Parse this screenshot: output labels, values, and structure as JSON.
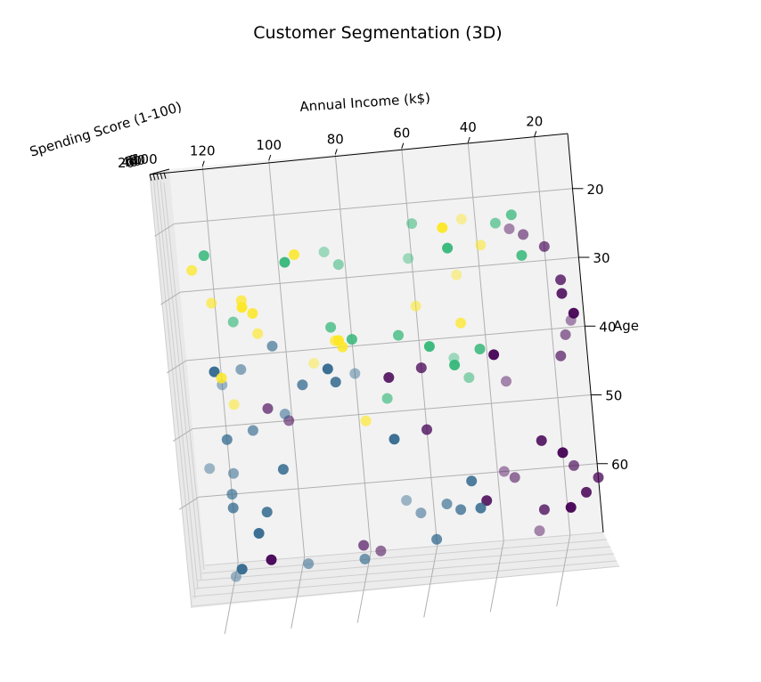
{
  "chart_data": {
    "type": "scatter",
    "projection": "3d",
    "title": "Customer Segmentation (3D)",
    "axes": {
      "x": {
        "label": "Annual Income (k$)",
        "ticks": [
          "20",
          "40",
          "60",
          "80",
          "100",
          "120"
        ]
      },
      "y": {
        "label": "Age",
        "ticks": [
          "20",
          "30",
          "40",
          "50",
          "60"
        ]
      },
      "z": {
        "label": "Spending Score (1-100)",
        "ticks": [
          "20",
          "40",
          "60",
          "80",
          "100"
        ]
      }
    },
    "grid": true,
    "legend": "none",
    "colors": {
      "purple": "#440154",
      "blue": "#31688e",
      "green": "#35b779",
      "yellow": "#fde725"
    },
    "clusters": [
      {
        "color": "#440154",
        "points": [
          [
            30,
            25
          ],
          [
            26,
            26
          ],
          [
            20,
            28
          ],
          [
            16,
            33
          ],
          [
            16,
            35
          ],
          [
            13,
            38
          ],
          [
            14,
            39
          ],
          [
            16,
            41
          ],
          [
            18,
            44
          ],
          [
            60,
            44
          ],
          [
            70,
            45
          ],
          [
            38,
            43
          ],
          [
            35,
            47
          ],
          [
            101,
            50
          ],
          [
            107,
            48
          ],
          [
            60,
            53
          ],
          [
            26,
            56
          ],
          [
            20,
            58
          ],
          [
            38,
            60
          ],
          [
            35,
            61
          ],
          [
            17,
            60
          ],
          [
            10,
            62
          ],
          [
            44,
            64
          ],
          [
            19,
            66
          ],
          [
            29,
            69
          ],
          [
            77,
            70
          ],
          [
            82,
            69
          ],
          [
            27,
            66
          ],
          [
            14,
            64
          ],
          [
            110,
            70
          ]
        ]
      },
      {
        "color": "#31688e",
        "points": [
          [
            122,
            42
          ],
          [
            120,
            44
          ],
          [
            114,
            42
          ],
          [
            104,
            39
          ],
          [
            96,
            45
          ],
          [
            86,
            45
          ],
          [
            88,
            43
          ],
          [
            80,
            44
          ],
          [
            102,
            49
          ],
          [
            112,
            51
          ],
          [
            120,
            52
          ],
          [
            104,
            57
          ],
          [
            70,
            54
          ],
          [
            126,
            56
          ],
          [
            119,
            57
          ],
          [
            120,
            60
          ],
          [
            120,
            62
          ],
          [
            110,
            63
          ],
          [
            113,
            66
          ],
          [
            68,
            63
          ],
          [
            64,
            65
          ],
          [
            56,
            64
          ],
          [
            52,
            65
          ],
          [
            46,
            65
          ],
          [
            119,
            71
          ],
          [
            121,
            72
          ],
          [
            99,
            71
          ],
          [
            82,
            71
          ],
          [
            60,
            69
          ],
          [
            48,
            61
          ]
        ]
      },
      {
        "color": "#35b779",
        "points": [
          [
            122,
            25
          ],
          [
            98,
            27
          ],
          [
            86,
            26
          ],
          [
            59,
            23
          ],
          [
            34,
            24
          ],
          [
            29,
            23
          ],
          [
            27,
            29
          ],
          [
            49,
            27
          ],
          [
            61,
            28
          ],
          [
            82,
            28
          ],
          [
            115,
            35
          ],
          [
            66,
            39
          ],
          [
            80,
            39
          ],
          [
            57,
            41
          ],
          [
            50,
            43
          ],
          [
            46,
            46
          ],
          [
            71,
            48
          ],
          [
            86,
            37
          ],
          [
            42,
            42
          ],
          [
            50,
            44
          ]
        ]
      },
      {
        "color": "#fde725",
        "points": [
          [
            126,
            27
          ],
          [
            95,
            26
          ],
          [
            50,
            24
          ],
          [
            44,
            23
          ],
          [
            39,
            27
          ],
          [
            121,
            32
          ],
          [
            112,
            32
          ],
          [
            109,
            34
          ],
          [
            112,
            33
          ],
          [
            47,
            31
          ],
          [
            60,
            35
          ],
          [
            108,
            37
          ],
          [
            85,
            39
          ],
          [
            83,
            40
          ],
          [
            84,
            39
          ],
          [
            92,
            42
          ],
          [
            117,
            47
          ],
          [
            78,
            51
          ],
          [
            47,
            38
          ],
          [
            120,
            43
          ]
        ]
      }
    ]
  }
}
